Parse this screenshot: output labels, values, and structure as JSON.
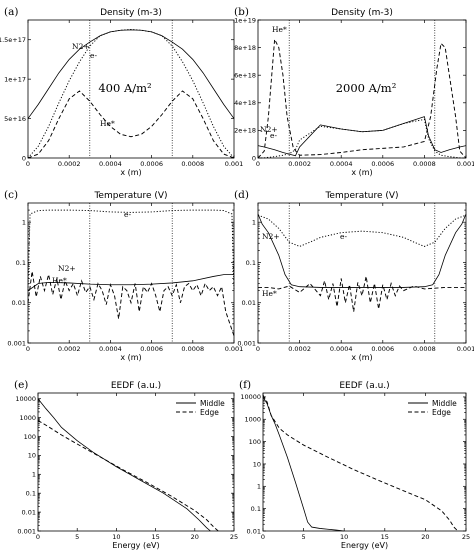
{
  "chart_data": [
    {
      "letter": "(a)",
      "title": "Density (m-3)",
      "type": "line",
      "xlabel": "x (m)",
      "xlim": [
        0,
        0.001
      ],
      "xticks": [
        "0",
        "0.0002",
        "0.0004",
        "0.0006",
        "0.0008",
        "0.001"
      ],
      "ylim": [
        0,
        1.75e+17
      ],
      "yscale": "linear",
      "yticks": [
        0,
        5e+16,
        1e+17,
        1.5e+17
      ],
      "yticklabels": [
        "0",
        "5e+16",
        "1e+17",
        "1.5e+17"
      ],
      "vlines": [
        0.0003,
        0.0007
      ],
      "annotation": "400 A/m²",
      "series": [
        {
          "name": "N2+",
          "style": "solid",
          "x": [
            0,
            5e-05,
            0.0001,
            0.00015,
            0.0002,
            0.00025,
            0.0003,
            0.00035,
            0.0004,
            0.00045,
            0.0005,
            0.00055,
            0.0006,
            0.00065,
            0.0007,
            0.00075,
            0.0008,
            0.00085,
            0.0009,
            0.00095,
            0.001
          ],
          "y": [
            5e+16,
            6.8e+16,
            8.8e+16,
            1.08e+17,
            1.25e+17,
            1.38e+17,
            1.47e+17,
            1.55e+17,
            1.6e+17,
            1.62e+17,
            1.625e+17,
            1.62e+17,
            1.6e+17,
            1.55e+17,
            1.47e+17,
            1.38e+17,
            1.25e+17,
            1.08e+17,
            8.8e+16,
            6.8e+16,
            5e+16
          ]
        },
        {
          "name": "e-",
          "style": "dotted",
          "x": [
            0,
            5e-05,
            0.0001,
            0.00015,
            0.0002,
            0.00025,
            0.0003,
            0.00035,
            0.0004,
            0.00045,
            0.0005,
            0.00055,
            0.0006,
            0.00065,
            0.0007,
            0.00075,
            0.0008,
            0.00085,
            0.0009,
            0.00095,
            0.001
          ],
          "y": [
            0,
            1.5e+16,
            4e+16,
            7e+16,
            9.8e+16,
            1.22e+17,
            1.42e+17,
            1.55e+17,
            1.6e+17,
            1.62e+17,
            1.63e+17,
            1.62e+17,
            1.6e+17,
            1.55e+17,
            1.42e+17,
            1.22e+17,
            9.8e+16,
            7e+16,
            4e+16,
            1.5e+16,
            0
          ]
        },
        {
          "name": "He*",
          "style": "dashed",
          "x": [
            0,
            5e-05,
            0.0001,
            0.00015,
            0.0002,
            0.00025,
            0.0003,
            0.00035,
            0.0004,
            0.00045,
            0.0005,
            0.00055,
            0.0006,
            0.00065,
            0.0007,
            0.00075,
            0.0008,
            0.00085,
            0.0009,
            0.00095,
            0.001
          ],
          "y": [
            0,
            5000000000000000.0,
            2.2e+16,
            5e+16,
            7.5e+16,
            8.5e+16,
            7.2e+16,
            5.5e+16,
            4e+16,
            3e+16,
            2.7e+16,
            3e+16,
            4e+16,
            5.5e+16,
            7.2e+16,
            8.5e+16,
            7.5e+16,
            5e+16,
            2.2e+16,
            5000000000000000.0,
            0
          ]
        }
      ]
    },
    {
      "letter": "(b)",
      "title": "Density (m-3)",
      "type": "line",
      "xlabel": "x (m)",
      "xlim": [
        0,
        0.001
      ],
      "xticks": [
        "0",
        "0.0002",
        "0.0004",
        "0.0006",
        "0.0008",
        "0.001"
      ],
      "ylim": [
        0,
        1e+19
      ],
      "yscale": "linear",
      "yticks": [
        0,
        2e+18,
        4e+18,
        6e+18,
        8e+18,
        1e+19
      ],
      "yticklabels": [
        "0",
        "2e+18",
        "4e+18",
        "6e+18",
        "8e+18",
        "1e+19"
      ],
      "vlines": [
        0.00015,
        0.00085
      ],
      "annotation": "2000 A/m²",
      "series": [
        {
          "name": "N2+",
          "style": "solid",
          "x": [
            0,
            3e-05,
            8e-05,
            0.00012,
            0.00015,
            0.00018,
            0.0002,
            0.0003,
            0.0004,
            0.0005,
            0.0006,
            0.0007,
            0.0008,
            0.00082,
            0.00085,
            0.00088,
            0.00092,
            0.00097,
            0.001
          ],
          "y": [
            9e+17,
            8e+17,
            6e+17,
            4e+17,
            2.8e+17,
            1.6e+17,
            8e+17,
            2.4e+18,
            2.1e+18,
            1.9e+18,
            2e+18,
            2.5e+18,
            3e+18,
            1.6e+18,
            6e+17,
            4e+17,
            6e+17,
            8e+17,
            9e+17
          ]
        },
        {
          "name": "e-",
          "style": "dotted",
          "x": [
            0,
            3e-05,
            8e-05,
            0.00012,
            0.00015,
            0.00018,
            0.0002,
            0.0003,
            0.0004,
            0.0005,
            0.0006,
            0.0007,
            0.0008,
            0.00082,
            0.00085,
            0.00088,
            0.00092,
            0.00097,
            0.001
          ],
          "y": [
            0,
            1e+16,
            1e+17,
            2e+17,
            3e+17,
            6e+17,
            1.3e+18,
            2.3e+18,
            2.1e+18,
            1.9e+18,
            2e+18,
            2.5e+18,
            2.8e+18,
            1.4e+18,
            5e+17,
            2e+17,
            1e+17,
            1e+16,
            0
          ]
        },
        {
          "name": "He*",
          "style": "dashed",
          "x": [
            0,
            3e-05,
            5e-05,
            8e-05,
            0.0001,
            0.00012,
            0.00014,
            0.00017,
            0.0002,
            0.0003,
            0.0004,
            0.0005,
            0.0006,
            0.0007,
            0.0008,
            0.00083,
            0.00086,
            0.00088,
            0.0009,
            0.00092,
            0.00095,
            0.00097,
            0.001
          ],
          "y": [
            0,
            5e+17,
            3e+18,
            8.6e+18,
            8e+18,
            6e+18,
            3e+18,
            7e+17,
            2e+17,
            2.5e+17,
            4e+17,
            6e+17,
            7e+17,
            8e+17,
            1.2e+18,
            3e+18,
            6.5e+18,
            8.3e+18,
            8e+18,
            6e+18,
            3e+18,
            5e+17,
            0
          ]
        }
      ]
    },
    {
      "letter": "(c)",
      "title": "Temperature (V)",
      "type": "line",
      "xlabel": "x (m)",
      "xlim": [
        0,
        0.001
      ],
      "xticks": [
        "0",
        "0.0002",
        "0.0004",
        "0.0006",
        "0.0008",
        "0.001"
      ],
      "ylim": [
        0.001,
        3
      ],
      "yscale": "log",
      "yticks": [
        0.001,
        0.01,
        0.1,
        1
      ],
      "yticklabels": [
        "0.001",
        "0.01",
        "0.1",
        "1"
      ],
      "vlines": [
        0.0003,
        0.0007
      ],
      "series": [
        {
          "name": "e-",
          "style": "dotted",
          "x": [
            0,
            1e-05,
            5e-05,
            0.0001,
            0.0002,
            0.0003,
            0.0004,
            0.0005,
            0.0006,
            0.0007,
            0.0008,
            0.0009,
            0.00095,
            0.00099,
            0.001
          ],
          "y": [
            0.02,
            1.6,
            1.95,
            2.0,
            2.0,
            1.95,
            1.8,
            1.75,
            1.8,
            1.95,
            2.0,
            2.0,
            1.95,
            1.6,
            0.02
          ]
        },
        {
          "name": "N2+",
          "style": "solid",
          "x": [
            0,
            5e-05,
            0.0001,
            0.0002,
            0.0003,
            0.0004,
            0.0005,
            0.0006,
            0.0007,
            0.0008,
            0.0009,
            0.00095,
            0.001
          ],
          "y": [
            0.02,
            0.03,
            0.032,
            0.031,
            0.029,
            0.028,
            0.028,
            0.029,
            0.031,
            0.035,
            0.045,
            0.05,
            0.05
          ]
        },
        {
          "name": "He*",
          "style": "dashed",
          "x": [
            0,
            2e-05,
            4e-05,
            6e-05,
            8e-05,
            0.0001,
            0.00012,
            0.00014,
            0.00016,
            0.00018,
            0.0002,
            0.00022,
            0.00024,
            0.00026,
            0.00028,
            0.0003,
            0.00032,
            0.00034,
            0.00036,
            0.00038,
            0.0004,
            0.00042,
            0.00044,
            0.00046,
            0.00048,
            0.0005,
            0.00052,
            0.00054,
            0.00056,
            0.00058,
            0.0006,
            0.00062,
            0.00064,
            0.00066,
            0.00068,
            0.0007,
            0.00072,
            0.00074,
            0.00076,
            0.00078,
            0.0008,
            0.00082,
            0.00084,
            0.00086,
            0.00088,
            0.0009,
            0.00092,
            0.00094,
            0.00096,
            0.00098,
            0.001
          ],
          "y": [
            0.01,
            0.06,
            0.014,
            0.045,
            0.02,
            0.05,
            0.016,
            0.04,
            0.012,
            0.035,
            0.02,
            0.03,
            0.015,
            0.035,
            0.018,
            0.025,
            0.012,
            0.03,
            0.02,
            0.009,
            0.028,
            0.015,
            0.004,
            0.025,
            0.02,
            0.01,
            0.03,
            0.006,
            0.025,
            0.018,
            0.03,
            0.015,
            0.006,
            0.02,
            0.025,
            0.015,
            0.028,
            0.01,
            0.025,
            0.03,
            0.02,
            0.028,
            0.015,
            0.03,
            0.02,
            0.025,
            0.015,
            0.025,
            0.006,
            0.003,
            0.0015
          ]
        }
      ]
    },
    {
      "letter": "(d)",
      "title": "Temperature (V)",
      "type": "line",
      "xlabel": "x (m)",
      "xlim": [
        0,
        0.001
      ],
      "xticks": [
        "0",
        "0.0002",
        "0.0004",
        "0.0006",
        "0.0008",
        "0.001"
      ],
      "ylim": [
        0.001,
        3
      ],
      "yscale": "log",
      "yticks": [
        0.001,
        0.01,
        0.1,
        1
      ],
      "yticklabels": [
        "0.001",
        "0.01",
        "0.1",
        "1"
      ],
      "vlines": [
        0.00015,
        0.00085
      ],
      "series": [
        {
          "name": "N2+",
          "style": "solid",
          "x": [
            0,
            2e-05,
            5e-05,
            0.0001,
            0.00013,
            0.00016,
            0.0002,
            0.0003,
            0.0004,
            0.0005,
            0.0006,
            0.0007,
            0.0008,
            0.00084,
            0.00087,
            0.0009,
            0.00095,
            0.00098,
            0.001
          ],
          "y": [
            1.6,
            0.9,
            0.55,
            0.15,
            0.05,
            0.028,
            0.025,
            0.024,
            0.024,
            0.024,
            0.024,
            0.024,
            0.025,
            0.028,
            0.05,
            0.15,
            0.55,
            0.9,
            1.6
          ]
        },
        {
          "name": "e-",
          "style": "dotted",
          "x": [
            0,
            5e-05,
            0.0001,
            0.00015,
            0.0002,
            0.00025,
            0.0003,
            0.0004,
            0.0005,
            0.0006,
            0.0007,
            0.00075,
            0.0008,
            0.00085,
            0.0009,
            0.00095,
            0.001
          ],
          "y": [
            1.5,
            1.2,
            0.7,
            0.32,
            0.25,
            0.32,
            0.42,
            0.55,
            0.6,
            0.55,
            0.42,
            0.32,
            0.25,
            0.32,
            0.7,
            1.2,
            1.5
          ]
        },
        {
          "name": "He*",
          "style": "dashed",
          "x": [
            0,
            5e-05,
            0.0001,
            0.00015,
            0.0002,
            0.00025,
            0.0003,
            0.00032,
            0.00034,
            0.00036,
            0.00038,
            0.0004,
            0.00042,
            0.00044,
            0.00046,
            0.00048,
            0.0005,
            0.00052,
            0.00054,
            0.00056,
            0.00058,
            0.0006,
            0.00062,
            0.00064,
            0.00066,
            0.00068,
            0.0007,
            0.00075,
            0.0008,
            0.0009,
            0.001
          ],
          "y": [
            0.024,
            0.024,
            0.022,
            0.026,
            0.018,
            0.03,
            0.015,
            0.035,
            0.012,
            0.03,
            0.008,
            0.04,
            0.01,
            0.028,
            0.006,
            0.032,
            0.015,
            0.045,
            0.01,
            0.03,
            0.007,
            0.028,
            0.012,
            0.03,
            0.015,
            0.026,
            0.02,
            0.026,
            0.022,
            0.024,
            0.024
          ]
        }
      ]
    },
    {
      "letter": "(e)",
      "title": "EEDF (a.u.)",
      "type": "line",
      "xlabel": "Energy (eV)",
      "xlim": [
        0,
        25
      ],
      "xticks": [
        "0",
        "5",
        "10",
        "15",
        "20",
        "25"
      ],
      "ylim": [
        0.001,
        20000
      ],
      "yscale": "log",
      "yticks": [
        0.001,
        0.01,
        0.1,
        1,
        10,
        100,
        1000,
        10000
      ],
      "yticklabels": [
        "0.001",
        "0.01",
        "0.1",
        "1",
        "10",
        "100",
        "1000",
        "10000"
      ],
      "legend": {
        "placement": "top-right",
        "entries": [
          "Middle",
          "Edge"
        ]
      },
      "series": [
        {
          "name": "Middle",
          "style": "solid",
          "x": [
            0,
            1,
            2,
            3,
            5,
            7,
            10,
            13,
            16,
            19,
            20.5,
            21.5,
            22
          ],
          "y": [
            10000,
            3000,
            1000,
            300,
            60,
            15,
            2.5,
            0.5,
            0.1,
            0.015,
            0.004,
            0.0015,
            0.001
          ]
        },
        {
          "name": "Edge",
          "style": "dashed",
          "x": [
            0,
            1,
            3,
            5,
            8,
            11,
            14,
            17,
            20,
            21.5,
            22.5,
            23
          ],
          "y": [
            700,
            400,
            120,
            40,
            8,
            1.6,
            0.35,
            0.07,
            0.012,
            0.004,
            0.0015,
            0.001
          ]
        }
      ]
    },
    {
      "letter": "(f)",
      "title": "EEDF (a.u.)",
      "type": "line",
      "xlabel": "Energy (eV)",
      "xlim": [
        0,
        25
      ],
      "xticks": [
        "0",
        "5",
        "10",
        "15",
        "20",
        "25"
      ],
      "ylim": [
        0.01,
        15000
      ],
      "yscale": "log",
      "yticks": [
        0.01,
        0.1,
        1,
        10,
        100,
        1000,
        10000
      ],
      "yticklabels": [
        "0.01",
        "0.1",
        "1",
        "10",
        "100",
        "1000",
        "10000"
      ],
      "legend": {
        "placement": "top-right",
        "entries": [
          "Middle",
          "Edge"
        ]
      },
      "series": [
        {
          "name": "Middle",
          "style": "solid",
          "x": [
            0,
            0.5,
            1,
            1.5,
            2,
            3,
            4,
            5,
            5.5,
            6,
            7,
            8,
            9,
            10
          ],
          "y": [
            10000,
            5000,
            1500,
            600,
            200,
            20,
            1.5,
            0.1,
            0.025,
            0.015,
            0.013,
            0.012,
            0.011,
            0.01
          ]
        },
        {
          "name": "Edge",
          "style": "dashed",
          "x": [
            0,
            0.5,
            1,
            2,
            3,
            5,
            8,
            11,
            14,
            17,
            20,
            22,
            23,
            23.5,
            24
          ],
          "y": [
            12000,
            6000,
            1500,
            400,
            200,
            70,
            20,
            6,
            2,
            0.7,
            0.25,
            0.08,
            0.03,
            0.015,
            0.01
          ]
        }
      ]
    }
  ],
  "labels": {
    "a": {
      "N2+": "N2+",
      "e-": "e-",
      "He*": "He*"
    },
    "b": {
      "He*": "He*",
      "N2+": "N2+",
      "e-": "e-"
    },
    "c": {
      "e-": "e-",
      "N2+": "N2+",
      "He*": "He*"
    },
    "d": {
      "N2+": "N2+",
      "e-": "e-",
      "He*": "He*"
    }
  }
}
